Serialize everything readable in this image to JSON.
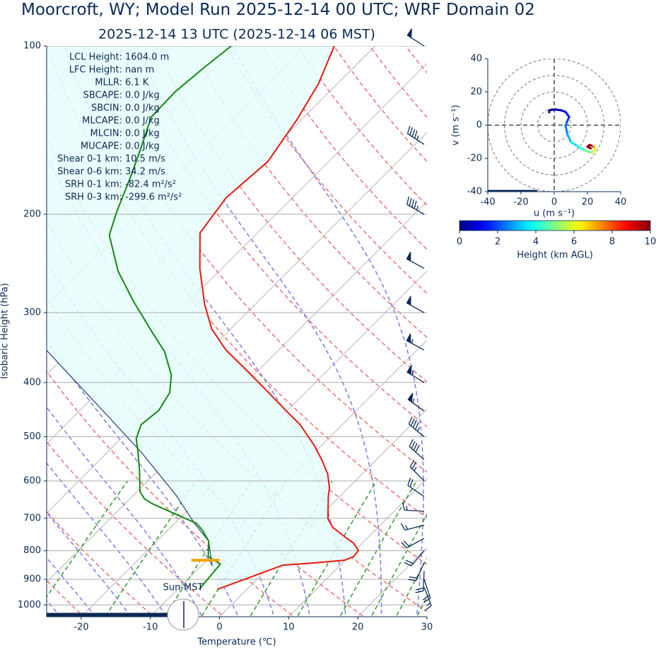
{
  "chart_data": {
    "type": "skewt",
    "title": "Moorcroft, WY; Model Run 2025-12-14 00 UTC; WRF Domain 02",
    "subtitle": "2025-12-14 13 UTC  (2025-12-14 06 MST)",
    "xlabel": "Temperature (℃)",
    "ylabel": "Isobaric Height (hPa)",
    "xlim": [
      -25,
      30
    ],
    "ylim": [
      1050,
      100
    ],
    "xticks": [
      -20,
      -10,
      0,
      10,
      20,
      30
    ],
    "yticks": [
      100,
      200,
      300,
      400,
      500,
      600,
      700,
      800,
      900,
      1000
    ],
    "log_y": true,
    "grid": true,
    "temperature": {
      "color": "#e8160c",
      "pressure": [
        938,
        849,
        842,
        832,
        820,
        799,
        776,
        751,
        726,
        701,
        637,
        618,
        583,
        550,
        519,
        476,
        449,
        417,
        382,
        350,
        321,
        290,
        250,
        216,
        187,
        161,
        136,
        117,
        100
      ],
      "values": [
        -4.3,
        1.7,
        5.5,
        9.9,
        10.7,
        10.5,
        8.8,
        6.1,
        3.4,
        1.5,
        -1.8,
        -2.7,
        -5.0,
        -7.9,
        -11.0,
        -16.1,
        -20.2,
        -25.3,
        -31.4,
        -37.6,
        -42.7,
        -47.3,
        -53.2,
        -58.3,
        -59.6,
        -58.8,
        -60.6,
        -62.7,
        -65.9
      ]
    },
    "dewpoint": {
      "color": "#118a11",
      "pressure": [
        938,
        845,
        820,
        769,
        736,
        715,
        689,
        659,
        646,
        627,
        575,
        534,
        504,
        476,
        449,
        417,
        388,
        352,
        321,
        286,
        253,
        218,
        198,
        171,
        153,
        134,
        121,
        109,
        100
      ],
      "values": [
        -6.9,
        -7.5,
        -10.3,
        -12.5,
        -14.9,
        -16.8,
        -21.0,
        -26.1,
        -27.9,
        -29.6,
        -32.7,
        -35.5,
        -37.8,
        -39.1,
        -38.6,
        -39.6,
        -41.9,
        -46.3,
        -51.6,
        -58.1,
        -64.6,
        -71.1,
        -73.4,
        -76.5,
        -79.0,
        -82.1,
        -82.3,
        -81.6,
        -80.8
      ]
    },
    "parcel": {
      "color": "#1f3a7a",
      "pressure": [
        852,
        769,
        715,
        637,
        534,
        455,
        350
      ],
      "values": [
        -8.4,
        -12.5,
        -17.1,
        -23.8,
        -35.0,
        -45.8,
        -63.6
      ]
    },
    "lcl": {
      "pressure": 832,
      "temperature": -10.2,
      "color": "#f0a30a"
    },
    "stats": [
      {
        "label": "LCL Height:",
        "value": "1604.0 m"
      },
      {
        "label": "LFC Height:",
        "value": "nan m"
      },
      {
        "label": "MLLR:",
        "value": "6.1 K"
      },
      {
        "label": "SBCAPE:",
        "value": "0.0 J/kg"
      },
      {
        "label": "SBCIN:",
        "value": "0.0 J/kg"
      },
      {
        "label": "MLCAPE:",
        "value": "0.0 J/kg"
      },
      {
        "label": "MLCIN:",
        "value": "0.0 J/kg"
      },
      {
        "label": "MUCAPE:",
        "value": "0.0 J/kg"
      },
      {
        "label": "Shear 0-1 km:",
        "value": "10.5 m/s"
      },
      {
        "label": "Shear 0-6 km:",
        "value": "34.2 m/s"
      },
      {
        "label": "SRH 0-1 km:",
        "value": "-82.4 m²/s²"
      },
      {
        "label": "SRH 0-3 km:",
        "value": "-299.6 m²/s²"
      }
    ],
    "clock_label": "Sun-MST",
    "wind": {
      "color": "#0b2a55",
      "pressure": [
        930,
        900,
        870,
        840,
        800,
        760,
        720,
        680,
        640,
        600,
        550,
        500,
        450,
        400,
        350,
        300,
        250,
        200,
        150,
        100
      ],
      "height_km": [
        0,
        0.3,
        0.6,
        0.9,
        1.3,
        1.7,
        2.1,
        2.5,
        3.0,
        3.5,
        4.1,
        4.8,
        5.6,
        6.4,
        7.3,
        8.4,
        9.6,
        11,
        13,
        15
      ],
      "u": [
        -3,
        -3,
        0.4,
        4,
        6.8,
        9,
        7.7,
        6.8,
        8,
        10,
        14.5,
        18.7,
        23,
        24.7,
        24,
        23,
        22,
        21,
        20,
        22
      ],
      "v": [
        7.7,
        9,
        9.4,
        9,
        8,
        5,
        2,
        -0.4,
        -5.5,
        -10,
        -13,
        -15.3,
        -16.6,
        -15,
        -13,
        -12.8,
        -12,
        -12,
        -13,
        -14
      ]
    },
    "hodograph": {
      "xlabel": "u (m s⁻¹)",
      "ylabel": "v (m s⁻¹)",
      "xlim": [
        -40,
        40
      ],
      "ylim": [
        -40,
        40
      ],
      "xticks": [
        -40,
        -20,
        0,
        20,
        40
      ],
      "yticks": [
        -40,
        -20,
        0,
        20,
        40
      ],
      "rings": [
        10,
        20,
        30,
        40
      ]
    },
    "colorbar": {
      "label": "Height (km AGL)",
      "lim": [
        0,
        10
      ],
      "ticks": [
        0,
        2,
        4,
        6,
        8,
        10
      ],
      "colormap": "jet"
    }
  }
}
